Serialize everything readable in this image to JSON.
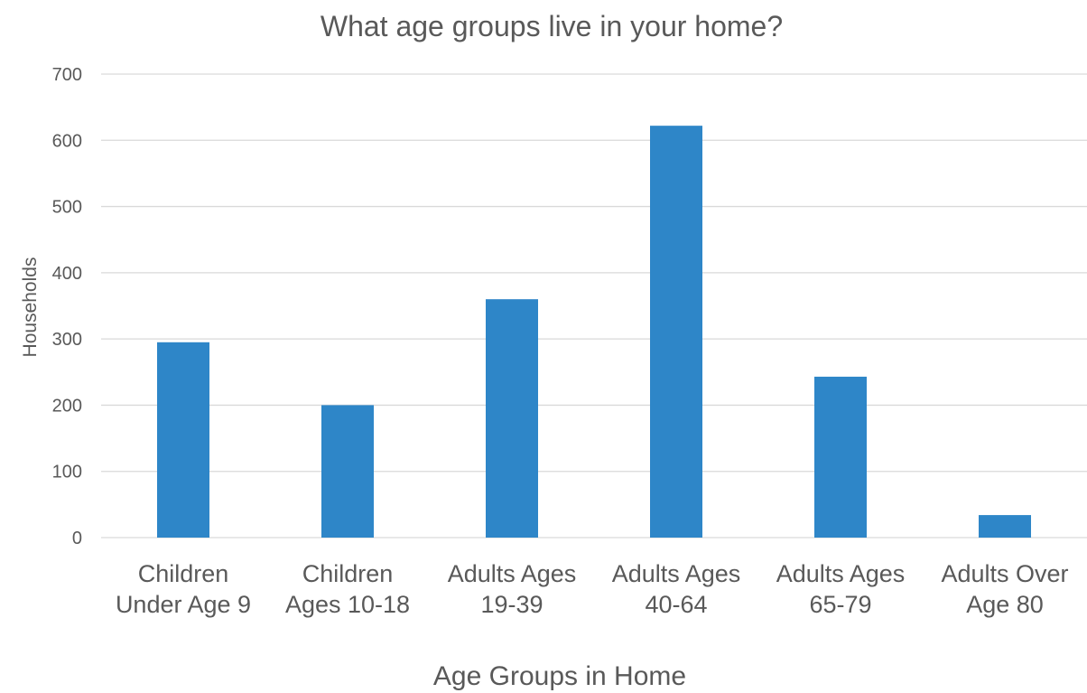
{
  "chart_data": {
    "type": "bar",
    "title": "What age groups live in your home?",
    "xlabel": "Age Groups in Home",
    "ylabel": "Households",
    "categories": [
      [
        "Children",
        "Under Age 9"
      ],
      [
        "Children",
        "Ages 10-18"
      ],
      [
        "Adults Ages",
        "19-39"
      ],
      [
        "Adults Ages",
        "40-64"
      ],
      [
        "Adults Ages",
        "65-79"
      ],
      [
        "Adults Over",
        "Age 80"
      ]
    ],
    "values": [
      295,
      200,
      360,
      622,
      243,
      34
    ],
    "ylim": [
      0,
      700
    ],
    "yticks": [
      0,
      100,
      200,
      300,
      400,
      500,
      600,
      700
    ],
    "grid": true,
    "legend": "none",
    "bar_color": "#2e86c8"
  }
}
